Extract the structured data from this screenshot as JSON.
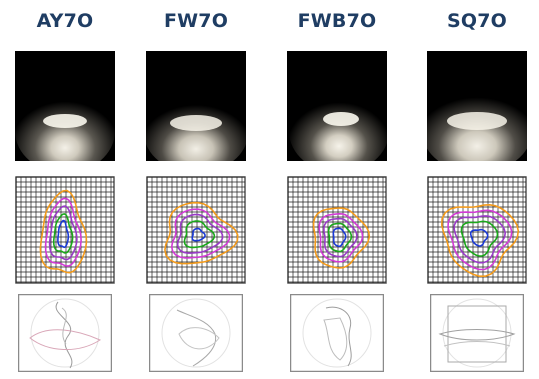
{
  "products": [
    {
      "name": "AY7O"
    },
    {
      "name": "FW7O"
    },
    {
      "name": "FWB7O"
    },
    {
      "name": "SQ7O"
    }
  ],
  "contour_colors": [
    "#f39a1a",
    "#d23ad6",
    "#9a3ac8",
    "#1aa81a",
    "#1a3ad6"
  ]
}
